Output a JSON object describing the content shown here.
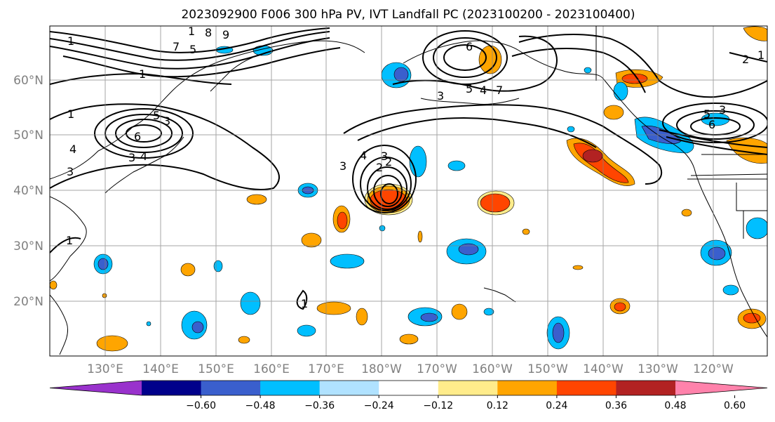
{
  "title": "2023092900 F006 300 hPa PV, IVT Landfall PC (2023100200 - 2023100400)",
  "lon_labels": [
    "130°E",
    "140°E",
    "150°E",
    "160°E",
    "170°E",
    "180°W",
    "170°W",
    "160°W",
    "150°W",
    "140°W",
    "130°W",
    "120°W"
  ],
  "lat_labels": [
    "60°N",
    "50°N",
    "40°N",
    "30°N",
    "20°N"
  ],
  "colorbar": {
    "colors": [
      "#9932cc",
      "#00008b",
      "#3a5fcd",
      "#00bfff",
      "#b0e2ff",
      "#ffffff",
      "#ffec8b",
      "#ffa500",
      "#ff4500",
      "#b22222",
      "#ff82ab"
    ],
    "tick_labels": [
      "−0.60",
      "−0.48",
      "−0.36",
      "−0.24",
      "−0.12",
      "0.12",
      "0.24",
      "0.36",
      "0.48",
      "0.60"
    ]
  },
  "contour_labels": [
    "1",
    "8",
    "9",
    "7",
    "5",
    "1",
    "1",
    "5",
    "6",
    "3",
    "4",
    "3",
    "3",
    "4",
    "4",
    "3",
    "2",
    "1",
    "6",
    "4",
    "7",
    "3",
    "5",
    "2",
    "5",
    "6",
    "3",
    "1",
    "3",
    "2",
    "1",
    "1"
  ]
}
